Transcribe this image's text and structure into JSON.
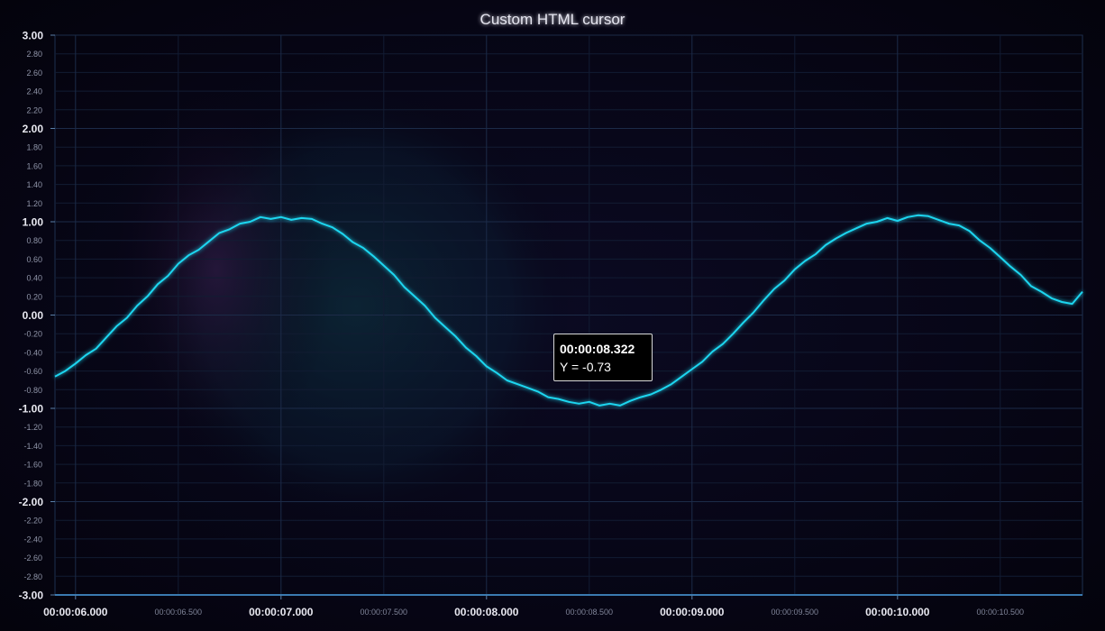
{
  "chart_title": "Custom HTML cursor",
  "colors": {
    "background": "#05040f",
    "grid": "#1a2a44",
    "series": "#1fd6f0",
    "axis_y_gradient": [
      "#4fb8e8",
      "#c070e0"
    ],
    "axis_x": "#3a7ab0"
  },
  "cursor": {
    "time_label": "00:00:08.322",
    "y_label": "Y = -0.73"
  },
  "chart_data": {
    "type": "line",
    "title": "Custom HTML cursor",
    "xlabel": "",
    "ylabel": "",
    "xlim_seconds": [
      5.9,
      10.9
    ],
    "ylim": [
      -3.0,
      3.0
    ],
    "grid": true,
    "legend": "none",
    "y_major_ticks": [
      "3.00",
      "2.00",
      "1.00",
      "0.00",
      "-1.00",
      "-2.00",
      "-3.00"
    ],
    "y_minor_ticks": [
      "2.80",
      "2.60",
      "2.40",
      "2.20",
      "1.80",
      "1.60",
      "1.40",
      "1.20",
      "0.80",
      "0.60",
      "0.40",
      "0.20",
      "-0.20",
      "-0.40",
      "-0.60",
      "-0.80",
      "-1.20",
      "-1.40",
      "-1.60",
      "-1.80",
      "-2.20",
      "-2.40",
      "-2.60",
      "-2.80"
    ],
    "x_major_ticks": [
      {
        "t": 6.0,
        "label": "00:00:06.000"
      },
      {
        "t": 7.0,
        "label": "00:00:07.000"
      },
      {
        "t": 8.0,
        "label": "00:00:08.000"
      },
      {
        "t": 9.0,
        "label": "00:00:09.000"
      },
      {
        "t": 10.0,
        "label": "00:00:10.000"
      }
    ],
    "x_minor_ticks": [
      {
        "t": 6.5,
        "label": "00:00:06.500"
      },
      {
        "t": 7.5,
        "label": "00:00:07.500"
      },
      {
        "t": 8.5,
        "label": "00:00:08.500"
      },
      {
        "t": 9.5,
        "label": "00:00:09.500"
      },
      {
        "t": 10.5,
        "label": "00:00:10.500"
      }
    ],
    "series": [
      {
        "x": [
          5.9,
          5.95,
          6.0,
          6.05,
          6.1,
          6.15,
          6.2,
          6.25,
          6.3,
          6.35,
          6.4,
          6.45,
          6.5,
          6.55,
          6.6,
          6.65,
          6.7,
          6.75,
          6.8,
          6.85,
          6.9,
          6.95,
          7.0,
          7.05,
          7.1,
          7.15,
          7.2,
          7.25,
          7.3,
          7.35,
          7.4,
          7.45,
          7.5,
          7.55,
          7.6,
          7.65,
          7.7,
          7.75,
          7.8,
          7.85,
          7.9,
          7.95,
          8.0,
          8.05,
          8.1,
          8.15,
          8.2,
          8.25,
          8.3,
          8.35,
          8.4,
          8.45,
          8.5,
          8.55,
          8.6,
          8.65,
          8.7,
          8.75,
          8.8,
          8.85,
          8.9,
          8.95,
          9.0,
          9.05,
          9.1,
          9.15,
          9.2,
          9.25,
          9.3,
          9.35,
          9.4,
          9.45,
          9.5,
          9.55,
          9.6,
          9.65,
          9.7,
          9.75,
          9.8,
          9.85,
          9.9,
          9.95,
          10.0,
          10.05,
          10.1,
          10.15,
          10.2,
          10.25,
          10.3,
          10.35,
          10.4,
          10.45,
          10.5,
          10.55,
          10.6,
          10.65,
          10.7,
          10.75,
          10.8,
          10.85,
          10.9
        ],
        "y": [
          -0.66,
          -0.6,
          -0.52,
          -0.43,
          -0.36,
          -0.24,
          -0.12,
          -0.03,
          0.1,
          0.2,
          0.33,
          0.42,
          0.55,
          0.64,
          0.7,
          0.79,
          0.88,
          0.92,
          0.98,
          1.0,
          1.05,
          1.03,
          1.05,
          1.02,
          1.04,
          1.03,
          0.98,
          0.94,
          0.87,
          0.78,
          0.72,
          0.63,
          0.53,
          0.43,
          0.3,
          0.2,
          0.1,
          -0.03,
          -0.13,
          -0.23,
          -0.35,
          -0.44,
          -0.55,
          -0.62,
          -0.7,
          -0.74,
          -0.78,
          -0.82,
          -0.88,
          -0.9,
          -0.93,
          -0.95,
          -0.93,
          -0.97,
          -0.95,
          -0.97,
          -0.92,
          -0.88,
          -0.85,
          -0.8,
          -0.74,
          -0.66,
          -0.58,
          -0.5,
          -0.39,
          -0.31,
          -0.2,
          -0.08,
          0.03,
          0.16,
          0.28,
          0.37,
          0.49,
          0.58,
          0.65,
          0.75,
          0.82,
          0.88,
          0.93,
          0.98,
          1.0,
          1.04,
          1.01,
          1.05,
          1.07,
          1.06,
          1.02,
          0.98,
          0.96,
          0.9,
          0.8,
          0.72,
          0.62,
          0.52,
          0.43,
          0.31,
          0.25,
          0.18,
          0.14,
          0.12,
          0.25
        ]
      }
    ]
  }
}
